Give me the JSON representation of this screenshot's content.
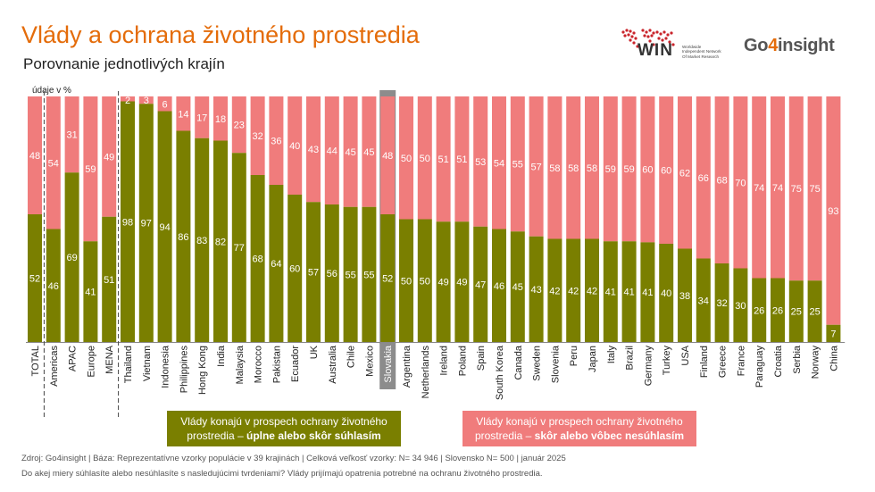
{
  "header": {
    "title": "Vlády a ochrana životného prostredia",
    "subtitle": "Porovnanie jednotlivých krajín",
    "unit_note": "údaje v %"
  },
  "logos": {
    "win_name": "WIN",
    "win_tagline": "Worldwide Independent Network Of Market Research",
    "go4_prefix": "Go",
    "go4_digit": "4",
    "go4_suffix": "insight"
  },
  "legend": {
    "agree_line1": "Vlády konajú v prospech ochrany životného",
    "agree_line2_plain": "prostredia – ",
    "agree_line2_bold": "úplne alebo skôr súhlasím",
    "disagree_line1": "Vlády konajú v prospech ochrany životného",
    "disagree_line2_plain": "prostredia – ",
    "disagree_line2_bold": "skôr alebo vôbec nesúhlasím"
  },
  "footer": {
    "source": "Zdroj: Go4insight | Báza: Reprezentatívne vzorky populácie v 39 krajinách | Celková veľkosť vzorky: N= 34 946 | Slovensko N= 500 | január 2025",
    "question": "Do akej miery súhlasíte alebo nesúhlasíte s nasledujúcimi tvrdeniami? Vlády prijímajú opatrenia potrebné na ochranu životného prostredia."
  },
  "colors": {
    "agree": "#7A7F00",
    "disagree": "#F07C7C",
    "title": "#E46C0A",
    "highlight": "#8C8C8C"
  },
  "chart_data": {
    "type": "bar",
    "stacked": true,
    "normalized_to": 100,
    "highlight_category": "Slovakia",
    "separators_after": [
      "TOTAL",
      "MENA"
    ],
    "categories": [
      "TOTAL",
      "Americas",
      "APAC",
      "Europe",
      "MENA",
      "Thailand",
      "Vietnam",
      "Indonesia",
      "Philippines",
      "Hong Kong",
      "India",
      "Malaysia",
      "Morocco",
      "Pakistan",
      "Ecuador",
      "UK",
      "Australia",
      "Chile",
      "Mexico",
      "Slovakia",
      "Argentina",
      "Netherlands",
      "Ireland",
      "Poland",
      "Spain",
      "South Korea",
      "Canada",
      "Sweden",
      "Slovenia",
      "Peru",
      "Japan",
      "Italy",
      "Brazil",
      "Germany",
      "Turkey",
      "USA",
      "Finland",
      "Greece",
      "France",
      "Paraguay",
      "Croatia",
      "Serbia",
      "Norway",
      "China"
    ],
    "series": [
      {
        "values": [
          52,
          46,
          69,
          41,
          51,
          98,
          97,
          94,
          86,
          83,
          82,
          77,
          68,
          64,
          60,
          57,
          56,
          55,
          55,
          52,
          50,
          50,
          49,
          49,
          47,
          46,
          45,
          43,
          42,
          42,
          42,
          41,
          41,
          41,
          40,
          38,
          34,
          32,
          30,
          26,
          26,
          25,
          25,
          7
        ]
      },
      {
        "values": [
          48,
          54,
          31,
          59,
          49,
          2,
          3,
          6,
          14,
          17,
          18,
          23,
          32,
          36,
          40,
          43,
          44,
          45,
          45,
          48,
          50,
          50,
          51,
          51,
          53,
          54,
          55,
          57,
          58,
          58,
          58,
          59,
          59,
          60,
          60,
          62,
          66,
          68,
          70,
          74,
          74,
          75,
          75,
          93
        ]
      }
    ]
  }
}
